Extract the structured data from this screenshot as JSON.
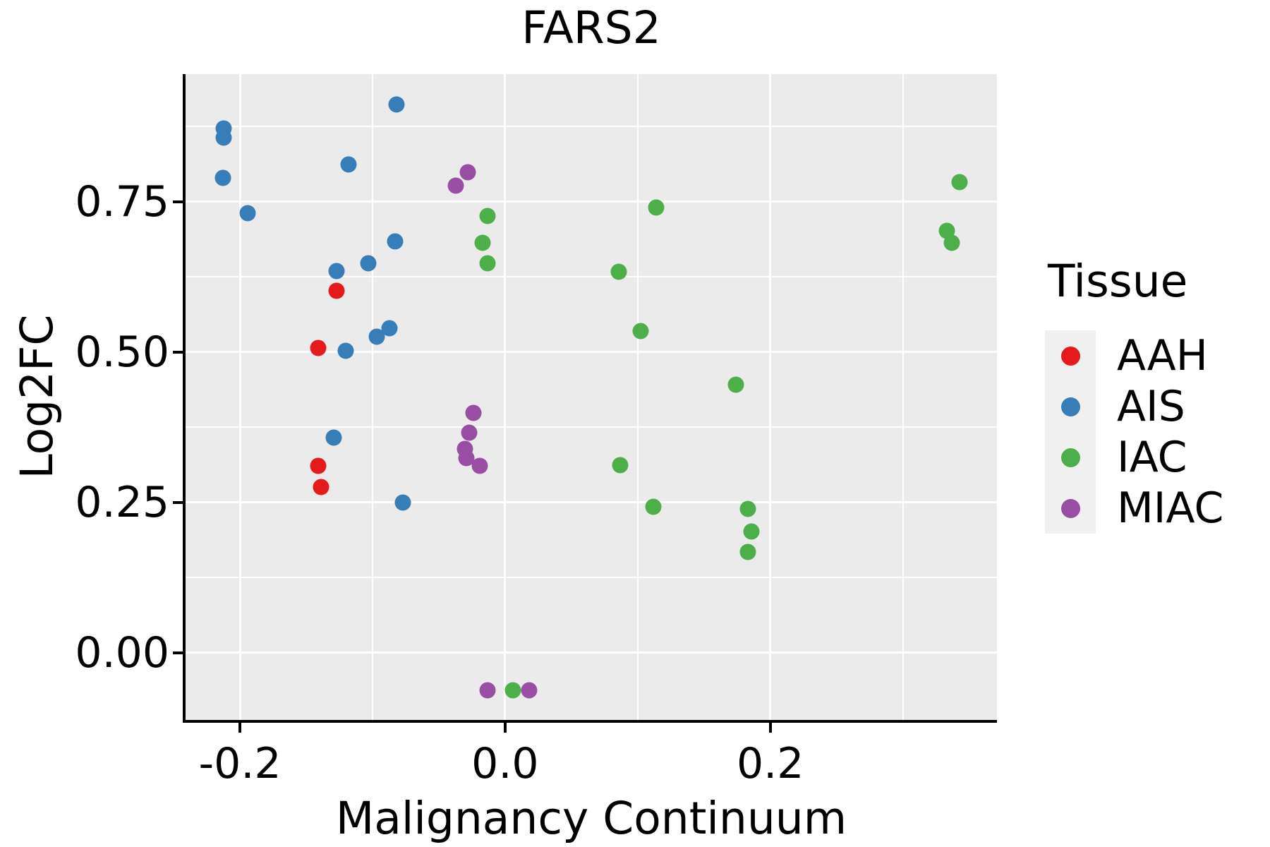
{
  "title": "FARS2",
  "colors": {
    "panel_bg": "#EBEBEB",
    "grid": "#FFFFFF",
    "axis": "#000000",
    "text": "#000000",
    "legend_key_bg": "#F0F0F0",
    "aah_red": "#E41A1C",
    "ais_blue": "#377EB8",
    "iac_green": "#4DAF4A",
    "miac_purple": "#984EA3"
  },
  "chart_data": {
    "type": "scatter",
    "title": "FARS2",
    "xlabel": "Malignancy Continuum",
    "ylabel": "Log2FC",
    "xlim": [
      -0.241,
      0.371
    ],
    "ylim": [
      -0.112,
      0.962
    ],
    "grid": true,
    "legend_title": "Tissue",
    "legend_position": "right",
    "x_ticks": [
      {
        "v": -0.2,
        "label": "-0.2"
      },
      {
        "v": 0.0,
        "label": "0.0"
      },
      {
        "v": 0.2,
        "label": "0.2"
      }
    ],
    "x_minor": [
      -0.1,
      0.1,
      0.3
    ],
    "y_ticks": [
      {
        "v": 0.0,
        "label": "0.00"
      },
      {
        "v": 0.25,
        "label": "0.25"
      },
      {
        "v": 0.5,
        "label": "0.50"
      },
      {
        "v": 0.75,
        "label": "0.75"
      }
    ],
    "y_minor": [
      0.125,
      0.375,
      0.625,
      0.875
    ],
    "series": [
      {
        "name": "AAH",
        "color": "#E41A1C",
        "points": [
          [
            -0.127,
            0.602
          ],
          [
            -0.141,
            0.507
          ],
          [
            -0.141,
            0.311
          ],
          [
            -0.139,
            0.275
          ]
        ]
      },
      {
        "name": "AIS",
        "color": "#377EB8",
        "points": [
          [
            -0.212,
            0.872
          ],
          [
            -0.212,
            0.856
          ],
          [
            -0.213,
            0.789
          ],
          [
            -0.194,
            0.731
          ],
          [
            -0.118,
            0.812
          ],
          [
            -0.082,
            0.911
          ],
          [
            -0.083,
            0.684
          ],
          [
            -0.103,
            0.648
          ],
          [
            -0.127,
            0.634
          ],
          [
            -0.087,
            0.539
          ],
          [
            -0.097,
            0.525
          ],
          [
            -0.12,
            0.502
          ],
          [
            -0.129,
            0.357
          ],
          [
            -0.077,
            0.249
          ]
        ]
      },
      {
        "name": "IAC",
        "color": "#4DAF4A",
        "points": [
          [
            -0.013,
            0.726
          ],
          [
            -0.017,
            0.681
          ],
          [
            -0.013,
            0.648
          ],
          [
            0.114,
            0.74
          ],
          [
            0.086,
            0.633
          ],
          [
            0.102,
            0.535
          ],
          [
            0.087,
            0.312
          ],
          [
            0.112,
            0.243
          ],
          [
            0.174,
            0.445
          ],
          [
            0.183,
            0.239
          ],
          [
            0.186,
            0.201
          ],
          [
            0.183,
            0.167
          ],
          [
            0.343,
            0.783
          ],
          [
            0.333,
            0.702
          ],
          [
            0.337,
            0.681
          ],
          [
            0.006,
            -0.063
          ]
        ]
      },
      {
        "name": "MIAC",
        "color": "#984EA3",
        "points": [
          [
            -0.028,
            0.799
          ],
          [
            -0.037,
            0.776
          ],
          [
            -0.024,
            0.399
          ],
          [
            -0.027,
            0.366
          ],
          [
            -0.03,
            0.339
          ],
          [
            -0.029,
            0.324
          ],
          [
            -0.019,
            0.31
          ],
          [
            -0.013,
            -0.063
          ],
          [
            0.018,
            -0.063
          ]
        ]
      }
    ]
  }
}
